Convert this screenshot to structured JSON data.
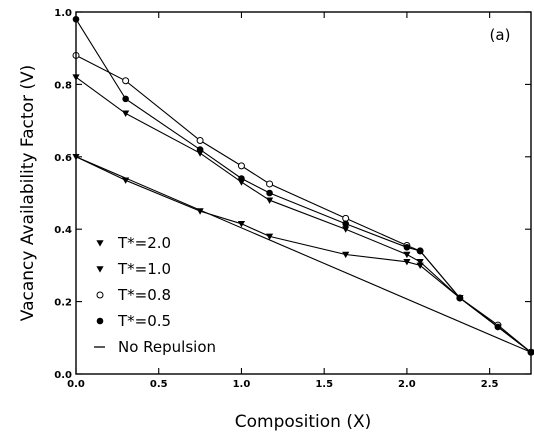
{
  "chart_data": {
    "type": "line",
    "panel_label": "(a)",
    "xlabel": "Composition (X)",
    "ylabel": "Vacancy Availability Factor (V)",
    "xlim": [
      0.0,
      2.75
    ],
    "ylim": [
      0.0,
      1.0
    ],
    "xticks": [
      "0.0",
      "0.5",
      "1.0",
      "1.5",
      "2.0",
      "2.5"
    ],
    "xtick_values": [
      0.0,
      0.5,
      1.0,
      1.5,
      2.0,
      2.5
    ],
    "yticks": [
      "0.0",
      "0.2",
      "0.4",
      "0.6",
      "0.8",
      "1.0"
    ],
    "ytick_values": [
      0.0,
      0.2,
      0.4,
      0.6,
      0.8,
      1.0
    ],
    "grid": false,
    "legend_position": "bottom-left",
    "series": [
      {
        "name": "T*=2.0",
        "marker": "triangle-down",
        "x": [
          0.0,
          0.3,
          0.75,
          1.0,
          1.17,
          1.63,
          2.0,
          2.08,
          2.32,
          2.55,
          2.75
        ],
        "y": [
          0.6,
          0.535,
          0.45,
          0.415,
          0.38,
          0.33,
          0.31,
          0.3,
          0.21,
          0.13,
          0.06
        ]
      },
      {
        "name": "T*=1.0",
        "marker": "triangle-down",
        "x": [
          0.0,
          0.3,
          0.75,
          1.0,
          1.17,
          1.63,
          2.0,
          2.08,
          2.32,
          2.55,
          2.75
        ],
        "y": [
          0.82,
          0.72,
          0.61,
          0.53,
          0.48,
          0.4,
          0.33,
          0.31,
          0.21,
          0.13,
          0.06
        ]
      },
      {
        "name": "T*=0.8",
        "marker": "circle-open",
        "x": [
          0.0,
          0.3,
          0.75,
          1.0,
          1.17,
          1.63,
          2.0,
          2.08,
          2.32,
          2.55,
          2.75
        ],
        "y": [
          0.88,
          0.81,
          0.645,
          0.575,
          0.525,
          0.43,
          0.355,
          0.34,
          0.21,
          0.135,
          0.06
        ]
      },
      {
        "name": "T*=0.5",
        "marker": "circle-filled",
        "x": [
          0.0,
          0.3,
          0.75,
          1.0,
          1.17,
          1.63,
          2.0,
          2.08,
          2.32,
          2.55,
          2.75
        ],
        "y": [
          0.98,
          0.76,
          0.62,
          0.54,
          0.5,
          0.415,
          0.35,
          0.34,
          0.21,
          0.13,
          0.06
        ]
      },
      {
        "name": "No Repulsion",
        "marker": "none",
        "x": [
          0.0,
          2.75
        ],
        "y": [
          0.6,
          0.06
        ]
      }
    ]
  }
}
